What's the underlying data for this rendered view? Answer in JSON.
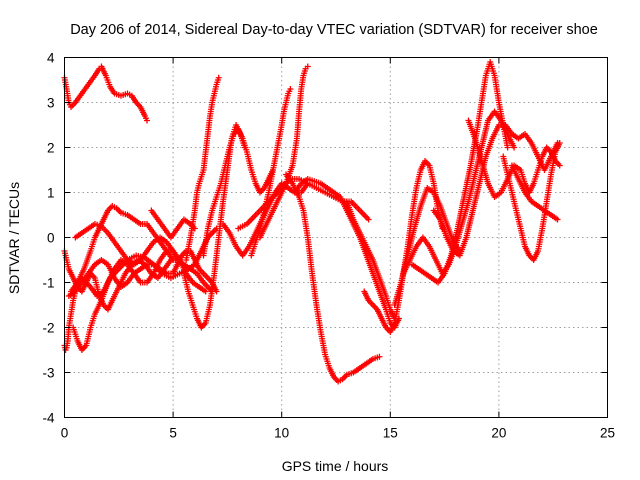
{
  "chart_data": {
    "type": "scatter",
    "title": "Day 206 of 2014, Sidereal Day-to-day VTEC variation (SDTVAR) for receiver shoe",
    "xlabel": "GPS time / hours",
    "ylabel": "SDTVAR / TECUs",
    "xlim": [
      0,
      25
    ],
    "ylim": [
      -4,
      4
    ],
    "x_ticks": [
      0,
      5,
      10,
      15,
      20,
      25
    ],
    "y_ticks": [
      -4,
      -3,
      -2,
      -1,
      0,
      1,
      2,
      3,
      4
    ],
    "x_tick_labels": [
      "0",
      "5",
      "10",
      "15",
      "20",
      "25"
    ],
    "y_tick_labels": [
      "-4",
      "-3",
      "-2",
      "-1",
      "0",
      "1",
      "2",
      "3",
      "4"
    ],
    "grid": true,
    "legend": "none",
    "marker": "plus",
    "color": "#ff0000",
    "series": [
      {
        "x": [
          0.0,
          0.1,
          0.2,
          0.3,
          0.5,
          0.8,
          1.1,
          1.4,
          1.6,
          1.7,
          1.9,
          2.1,
          2.3,
          2.6,
          2.9,
          3.1,
          3.3,
          3.5,
          3.7,
          3.8
        ],
        "y": [
          3.55,
          3.3,
          3.0,
          2.9,
          3.0,
          3.2,
          3.4,
          3.6,
          3.75,
          3.8,
          3.6,
          3.35,
          3.2,
          3.15,
          3.2,
          3.15,
          3.0,
          2.9,
          2.7,
          2.6
        ]
      },
      {
        "x": [
          0.0,
          0.05,
          0.1,
          0.15,
          0.2,
          0.3,
          0.4,
          0.5,
          0.6,
          0.8,
          1.0,
          1.2,
          1.5,
          1.8,
          2.1,
          2.5,
          2.9,
          3.3,
          3.7,
          4.1,
          4.5,
          4.9,
          5.3,
          5.7,
          6.0,
          6.2,
          6.4,
          6.6,
          6.8,
          7.0
        ],
        "y": [
          -2.4,
          -2.5,
          -2.45,
          -2.3,
          -2.0,
          -1.7,
          -1.4,
          -1.2,
          -1.0,
          -0.9,
          -1.0,
          -1.1,
          -1.3,
          -1.2,
          -0.9,
          -0.7,
          -0.5,
          -0.4,
          -0.45,
          -0.6,
          -0.8,
          -0.9,
          -0.8,
          -0.7,
          -0.6,
          -0.4,
          -0.2,
          0.0,
          0.1,
          0.2
        ]
      },
      {
        "x": [
          0.0,
          0.1,
          0.2,
          0.4,
          0.6,
          0.8,
          1.0,
          1.2,
          1.4,
          1.6,
          1.8,
          2.0,
          2.2,
          2.5,
          2.8,
          3.1,
          3.4,
          3.7,
          4.0,
          4.3,
          4.6,
          4.9,
          5.2,
          5.5,
          5.8,
          6.1,
          6.4,
          6.6,
          6.8
        ],
        "y": [
          -0.3,
          -0.5,
          -0.7,
          -0.9,
          -1.1,
          -1.2,
          -1.0,
          -0.8,
          -0.9,
          -1.3,
          -1.5,
          -1.6,
          -1.4,
          -1.1,
          -0.8,
          -0.6,
          -0.5,
          -0.6,
          -0.8,
          -0.9,
          -0.7,
          -0.5,
          -0.5,
          -0.6,
          -0.7,
          -0.8,
          -1.0,
          -1.1,
          -1.2
        ]
      },
      {
        "x": [
          0.4,
          0.6,
          0.8,
          1.0,
          1.2,
          1.4,
          1.7,
          2.0,
          2.3,
          2.6,
          2.9,
          3.2,
          3.5,
          3.8,
          4.1,
          4.4,
          4.7,
          5.0,
          5.3,
          5.6,
          5.9,
          6.2,
          6.5
        ],
        "y": [
          -2.0,
          -2.3,
          -2.5,
          -2.4,
          -2.0,
          -1.7,
          -1.4,
          -1.0,
          -0.7,
          -0.5,
          -0.6,
          -0.8,
          -1.0,
          -1.0,
          -0.8,
          -0.5,
          -0.3,
          -0.3,
          -0.5,
          -0.8,
          -1.0,
          -1.1,
          -1.2
        ]
      },
      {
        "x": [
          0.2,
          0.5,
          0.8,
          1.1,
          1.4,
          1.7,
          2.0,
          2.3,
          2.6,
          2.9,
          3.2,
          3.5,
          3.8,
          4.1,
          4.4,
          4.7,
          5.0,
          5.2,
          5.4,
          5.6,
          5.8,
          6.0,
          6.2,
          6.4,
          6.6,
          6.8,
          7.0
        ],
        "y": [
          -1.3,
          -1.2,
          -1.0,
          -0.8,
          -0.6,
          -0.5,
          -0.6,
          -0.9,
          -1.1,
          -1.0,
          -0.8,
          -0.7,
          -0.6,
          -0.6,
          -0.7,
          -0.8,
          -0.8,
          -0.6,
          -0.4,
          -0.3,
          -0.3,
          -0.5,
          -0.7,
          -0.8,
          -0.9,
          -1.0,
          -1.2
        ]
      },
      {
        "x": [
          0.3,
          0.6,
          0.9,
          1.2,
          1.4,
          1.6,
          1.8,
          2.0,
          2.2,
          2.4,
          2.6,
          2.9,
          3.2,
          3.5,
          3.8,
          4.1,
          4.4,
          4.7,
          5.0
        ],
        "y": [
          -1.2,
          -1.0,
          -0.7,
          -0.3,
          0.0,
          0.2,
          0.4,
          0.6,
          0.7,
          0.65,
          0.55,
          0.5,
          0.4,
          0.3,
          0.3,
          0.1,
          -0.1,
          -0.3,
          -0.5
        ]
      },
      {
        "x": [
          0.5,
          0.8,
          1.1,
          1.4,
          1.7,
          2.0,
          2.3,
          2.6,
          2.9,
          3.2,
          3.5,
          3.8,
          4.1,
          4.4,
          4.7,
          5.0,
          5.2
        ],
        "y": [
          0.0,
          0.1,
          0.2,
          0.3,
          0.25,
          0.1,
          -0.1,
          -0.3,
          -0.5,
          -0.6,
          -0.5,
          -0.3,
          -0.1,
          0.0,
          -0.1,
          -0.3,
          -0.5
        ]
      },
      {
        "x": [
          4.0,
          4.3,
          4.6,
          4.9,
          5.2,
          5.5,
          5.8,
          6.0
        ],
        "y": [
          0.6,
          0.4,
          0.2,
          0.0,
          0.2,
          0.4,
          0.3,
          0.2
        ]
      },
      {
        "x": [
          5.5,
          5.7,
          5.9,
          6.1,
          6.3,
          6.5,
          6.7,
          6.9,
          7.1,
          7.3,
          7.5,
          7.7,
          7.9,
          8.1,
          8.3
        ],
        "y": [
          -0.8,
          -1.2,
          -1.5,
          -1.8,
          -2.0,
          -1.9,
          -1.5,
          -0.8,
          0.0,
          0.8,
          1.5,
          2.2,
          2.5,
          2.3,
          2.0
        ]
      },
      {
        "x": [
          5.6,
          5.8,
          6.0,
          6.1,
          6.2,
          6.4,
          6.5,
          6.6,
          6.7,
          6.8,
          6.9,
          7.0,
          7.1
        ],
        "y": [
          -0.5,
          0.0,
          0.6,
          1.0,
          1.2,
          1.5,
          1.9,
          2.3,
          2.7,
          3.0,
          3.2,
          3.4,
          3.55
        ]
      },
      {
        "x": [
          6.4,
          6.6,
          6.8,
          7.0,
          7.2,
          7.4,
          7.6,
          7.8,
          8.0,
          8.2,
          8.4,
          8.6,
          8.8,
          9.0,
          9.2,
          9.4,
          9.6
        ],
        "y": [
          -0.4,
          0.2,
          0.6,
          0.9,
          1.2,
          1.6,
          2.0,
          2.3,
          2.4,
          2.2,
          1.9,
          1.5,
          1.2,
          1.0,
          1.1,
          1.3,
          1.5
        ]
      },
      {
        "x": [
          7.3,
          7.6,
          7.9,
          8.2,
          8.5,
          8.8,
          9.1,
          9.4,
          9.7,
          10.0,
          10.3,
          10.6,
          10.9,
          11.2
        ],
        "y": [
          0.3,
          0.1,
          -0.2,
          -0.4,
          -0.2,
          0.1,
          0.4,
          0.7,
          1.0,
          1.2,
          1.1,
          1.0,
          1.0,
          1.2
        ]
      },
      {
        "x": [
          8.6,
          8.8,
          9.0,
          9.2,
          9.4,
          9.6,
          9.8,
          10.0,
          10.1,
          10.2,
          10.3,
          10.4
        ],
        "y": [
          -0.4,
          -0.1,
          0.2,
          0.6,
          1.0,
          1.5,
          2.0,
          2.5,
          2.8,
          3.0,
          3.2,
          3.3
        ]
      },
      {
        "x": [
          9.0,
          9.3,
          9.6,
          9.9,
          10.2,
          10.5,
          10.7,
          10.8,
          10.9,
          11.0,
          11.1,
          11.2
        ],
        "y": [
          0.0,
          0.3,
          0.6,
          0.9,
          1.2,
          1.6,
          2.2,
          2.8,
          3.3,
          3.6,
          3.75,
          3.8
        ]
      },
      {
        "x": [
          8.0,
          8.4,
          8.8,
          9.2,
          9.6,
          10.0,
          10.4,
          10.8,
          11.2,
          11.6,
          12.0,
          12.4,
          12.8,
          13.2,
          13.6,
          14.0
        ],
        "y": [
          0.2,
          0.3,
          0.5,
          0.7,
          0.9,
          1.1,
          1.3,
          1.3,
          1.2,
          1.1,
          1.0,
          0.9,
          0.8,
          0.8,
          0.6,
          0.4
        ]
      },
      {
        "x": [
          10.2,
          10.5,
          10.8,
          11.0,
          11.2,
          11.4,
          11.6,
          11.8,
          12.0,
          12.2,
          12.4,
          12.6,
          12.8,
          13.0,
          13.3,
          13.6,
          13.9,
          14.2,
          14.5
        ],
        "y": [
          1.4,
          1.2,
          0.9,
          0.6,
          0.0,
          -0.8,
          -1.5,
          -2.1,
          -2.6,
          -2.9,
          -3.1,
          -3.2,
          -3.15,
          -3.05,
          -3.0,
          -2.9,
          -2.8,
          -2.7,
          -2.65
        ]
      },
      {
        "x": [
          10.6,
          10.9,
          11.2,
          11.5,
          11.8,
          12.1,
          12.4,
          12.7,
          13.0,
          13.3,
          13.6,
          13.9,
          14.2,
          14.5,
          14.8,
          15.0,
          15.2,
          15.4
        ],
        "y": [
          1.0,
          1.2,
          1.3,
          1.25,
          1.2,
          1.1,
          1.0,
          0.9,
          0.6,
          0.3,
          0.0,
          -0.4,
          -0.8,
          -1.2,
          -1.6,
          -1.9,
          -2.0,
          -1.8
        ]
      },
      {
        "x": [
          13.0,
          13.3,
          13.6,
          13.9,
          14.2,
          14.5,
          14.8,
          15.0,
          15.2
        ],
        "y": [
          0.8,
          0.4,
          0.1,
          -0.2,
          -0.5,
          -0.9,
          -1.3,
          -1.6,
          -1.8
        ]
      },
      {
        "x": [
          13.8,
          14.0,
          14.2,
          14.4,
          14.6,
          14.8,
          15.0,
          15.2,
          15.4,
          15.6,
          15.8,
          16.0,
          16.2,
          16.4,
          16.6,
          16.8,
          17.0,
          17.2,
          17.4
        ],
        "y": [
          -1.2,
          -1.4,
          -1.5,
          -1.6,
          -1.8,
          -2.0,
          -2.1,
          -1.9,
          -1.4,
          -0.8,
          -0.2,
          0.5,
          1.1,
          1.5,
          1.7,
          1.6,
          1.2,
          0.6,
          0.2
        ]
      },
      {
        "x": [
          15.2,
          15.5,
          15.8,
          16.1,
          16.4,
          16.7,
          17.0,
          17.3,
          17.6,
          17.9,
          18.2
        ],
        "y": [
          -1.5,
          -1.0,
          -0.4,
          0.2,
          0.7,
          1.1,
          1.0,
          0.7,
          0.3,
          -0.1,
          -0.3
        ]
      },
      {
        "x": [
          15.6,
          15.9,
          16.2,
          16.5,
          16.8,
          17.1,
          17.4,
          17.7,
          18.0,
          18.3,
          18.6,
          18.9,
          19.2,
          19.5,
          19.8,
          20.1,
          20.4,
          20.7
        ],
        "y": [
          -0.8,
          -0.5,
          -0.2,
          0.0,
          -0.2,
          -0.5,
          -0.8,
          -0.6,
          -0.2,
          0.3,
          0.8,
          1.4,
          2.0,
          2.6,
          2.8,
          2.6,
          2.3,
          2.0
        ]
      },
      {
        "x": [
          16.0,
          16.3,
          16.6,
          16.9,
          17.2,
          17.5,
          17.8,
          18.1,
          18.4,
          18.7,
          19.0,
          19.2,
          19.4,
          19.6,
          19.8,
          20.0,
          20.2,
          20.4
        ],
        "y": [
          -0.6,
          -0.7,
          -0.8,
          -0.9,
          -1.0,
          -0.8,
          -0.4,
          0.2,
          0.9,
          1.6,
          2.4,
          3.0,
          3.6,
          3.9,
          3.6,
          3.0,
          2.5,
          2.0
        ]
      },
      {
        "x": [
          17.0,
          17.3,
          17.6,
          17.9,
          18.2,
          18.5,
          18.8,
          19.1,
          19.4,
          19.7,
          20.0,
          20.3,
          20.6,
          20.9,
          21.2,
          21.5,
          21.8,
          22.1,
          22.4,
          22.7
        ],
        "y": [
          0.6,
          0.4,
          0.0,
          -0.3,
          -0.4,
          0.0,
          0.6,
          1.2,
          1.8,
          2.2,
          2.5,
          2.5,
          2.3,
          2.2,
          2.3,
          2.1,
          1.8,
          1.5,
          1.8,
          2.1
        ]
      },
      {
        "x": [
          18.6,
          18.9,
          19.2,
          19.5,
          19.8,
          20.1,
          20.4,
          20.7,
          21.0,
          21.2,
          21.4,
          21.6,
          21.8,
          22.0,
          22.2,
          22.4,
          22.6,
          22.8
        ],
        "y": [
          2.6,
          2.2,
          1.7,
          1.2,
          0.9,
          1.0,
          1.3,
          1.6,
          1.5,
          1.2,
          1.0,
          1.2,
          1.5,
          1.8,
          2.0,
          1.9,
          1.7,
          1.6
        ]
      },
      {
        "x": [
          20.2,
          20.4,
          20.6,
          20.8,
          21.0,
          21.2,
          21.4,
          21.6,
          21.8,
          22.0,
          22.2,
          22.4,
          22.6,
          22.8
        ],
        "y": [
          1.8,
          1.4,
          1.0,
          0.6,
          0.2,
          -0.2,
          -0.4,
          -0.5,
          -0.3,
          0.2,
          0.8,
          1.4,
          1.9,
          2.1
        ]
      },
      {
        "x": [
          20.6,
          20.9,
          21.2,
          21.5,
          21.8,
          22.1,
          22.4,
          22.7
        ],
        "y": [
          1.6,
          1.3,
          1.0,
          0.8,
          0.7,
          0.6,
          0.5,
          0.4
        ]
      }
    ]
  }
}
